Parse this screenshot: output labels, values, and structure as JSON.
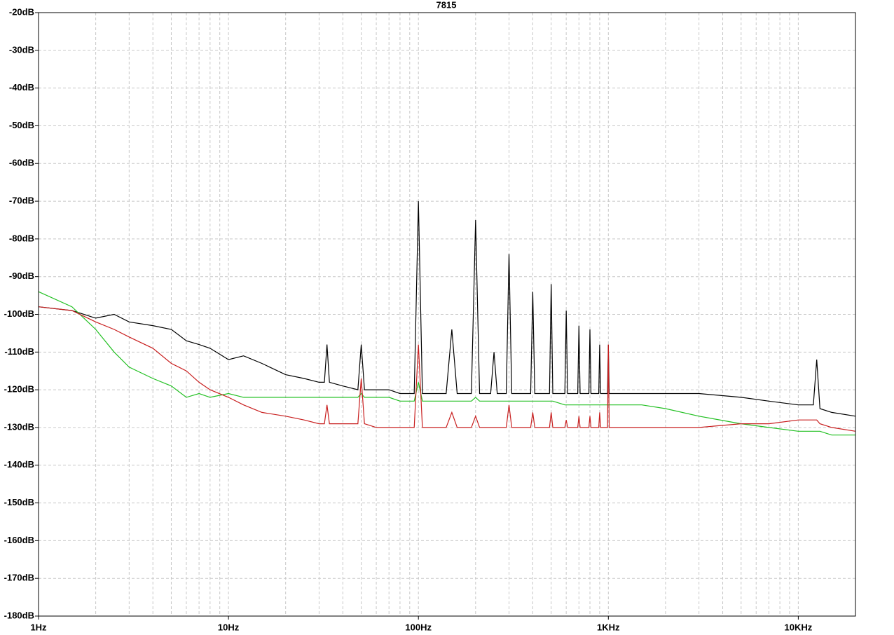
{
  "chart_data": {
    "type": "line",
    "title": "7815",
    "x": [
      1,
      1.5,
      2,
      2.5,
      3,
      4,
      5,
      6,
      7,
      8,
      10,
      12,
      15,
      20,
      25,
      30,
      32,
      33,
      34,
      40,
      48,
      50,
      52,
      60,
      70,
      80,
      95,
      100,
      105,
      140,
      150,
      160,
      190,
      200,
      210,
      240,
      250,
      260,
      290,
      300,
      310,
      390,
      400,
      410,
      490,
      500,
      510,
      590,
      600,
      610,
      690,
      700,
      710,
      790,
      800,
      810,
      890,
      900,
      910,
      990,
      1000,
      1010,
      1500,
      2000,
      3000,
      5000,
      7000,
      10000,
      12000,
      12500,
      13000,
      15000,
      20000
    ],
    "series": [
      {
        "color": "#000000",
        "values": [
          -98,
          -99,
          -101,
          -100,
          -102,
          -103,
          -104,
          -107,
          -108,
          -109,
          -112,
          -111,
          -113,
          -116,
          -117,
          -118,
          -118,
          -108,
          -118,
          -119,
          -120,
          -108,
          -120,
          -120,
          -120,
          -121,
          -121,
          -70,
          -121,
          -121,
          -104,
          -121,
          -121,
          -75,
          -121,
          -121,
          -110,
          -121,
          -121,
          -84,
          -121,
          -121,
          -94,
          -121,
          -121,
          -92,
          -121,
          -121,
          -99,
          -121,
          -121,
          -103,
          -121,
          -121,
          -104,
          -121,
          -121,
          -108,
          -121,
          -121,
          -108,
          -121,
          -121,
          -121,
          -121,
          -122,
          -123,
          -124,
          -124,
          -112,
          -125,
          -126,
          -127
        ]
      },
      {
        "color": "#22c022",
        "values": [
          -94,
          -98,
          -104,
          -110,
          -114,
          -117,
          -119,
          -122,
          -121,
          -122,
          -121,
          -122,
          -122,
          -122,
          -122,
          -122,
          -122,
          -122,
          -122,
          -122,
          -122,
          -121,
          -122,
          -122,
          -122,
          -123,
          -123,
          -118,
          -123,
          -123,
          -123,
          -123,
          -123,
          -122,
          -123,
          -123,
          -123,
          -123,
          -123,
          -123,
          -123,
          -123,
          -123,
          -123,
          -123,
          -123,
          -123,
          -124,
          -124,
          -124,
          -124,
          -124,
          -124,
          -124,
          -124,
          -124,
          -124,
          -124,
          -124,
          -124,
          -124,
          -124,
          -124,
          -125,
          -127,
          -129,
          -130,
          -131,
          -131,
          -131,
          -131,
          -132,
          -132
        ]
      },
      {
        "color": "#c81e1e",
        "values": [
          -98,
          -99,
          -102,
          -104,
          -106,
          -109,
          -113,
          -115,
          -118,
          -120,
          -122,
          -124,
          -126,
          -127,
          -128,
          -129,
          -129,
          -124,
          -129,
          -129,
          -129,
          -117,
          -129,
          -130,
          -130,
          -130,
          -130,
          -108,
          -130,
          -130,
          -126,
          -130,
          -130,
          -127,
          -130,
          -130,
          -130,
          -130,
          -130,
          -124,
          -130,
          -130,
          -126,
          -130,
          -130,
          -126,
          -130,
          -130,
          -128,
          -130,
          -130,
          -127,
          -130,
          -130,
          -127,
          -130,
          -130,
          -126,
          -130,
          -130,
          -108,
          -130,
          -130,
          -130,
          -130,
          -129,
          -129,
          -128,
          -128,
          -128,
          -129,
          -130,
          -131
        ]
      }
    ],
    "xlog": true,
    "grid": true,
    "xlim": [
      1,
      20000
    ],
    "xticks": [
      {
        "value": 1,
        "label": "1Hz"
      },
      {
        "value": 10,
        "label": "10Hz"
      },
      {
        "value": 100,
        "label": "100Hz"
      },
      {
        "value": 1000,
        "label": "1KHz"
      },
      {
        "value": 10000,
        "label": "10KHz"
      }
    ],
    "xminorticks": [
      2,
      3,
      4,
      5,
      6,
      7,
      8,
      9,
      20,
      30,
      40,
      50,
      60,
      70,
      80,
      90,
      200,
      300,
      400,
      500,
      600,
      700,
      800,
      900,
      2000,
      3000,
      4000,
      5000,
      6000,
      7000,
      8000,
      9000
    ],
    "ylim": [
      -180,
      -20
    ],
    "yticks": [
      {
        "value": -20,
        "label": "-20dB"
      },
      {
        "value": -30,
        "label": "-30dB"
      },
      {
        "value": -40,
        "label": "-40dB"
      },
      {
        "value": -50,
        "label": "-50dB"
      },
      {
        "value": -60,
        "label": "-60dB"
      },
      {
        "value": -70,
        "label": "-70dB"
      },
      {
        "value": -80,
        "label": "-80dB"
      },
      {
        "value": -90,
        "label": "-90dB"
      },
      {
        "value": -100,
        "label": "-100dB"
      },
      {
        "value": -110,
        "label": "-110dB"
      },
      {
        "value": -120,
        "label": "-120dB"
      },
      {
        "value": -130,
        "label": "-130dB"
      },
      {
        "value": -140,
        "label": "-140dB"
      },
      {
        "value": -150,
        "label": "-150dB"
      },
      {
        "value": -160,
        "label": "-160dB"
      },
      {
        "value": -170,
        "label": "-170dB"
      },
      {
        "value": -180,
        "label": "-180dB"
      }
    ]
  }
}
